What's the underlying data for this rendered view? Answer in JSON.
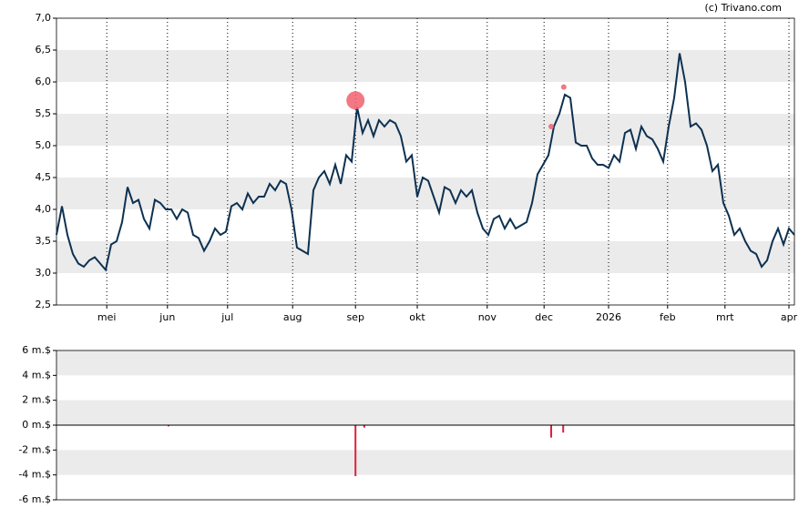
{
  "chart_data": [
    {
      "type": "line",
      "source": "(c) Trivano.com",
      "color": "#0d3151",
      "values": [
        3.6,
        4.05,
        3.6,
        3.3,
        3.15,
        3.1,
        3.2,
        3.25,
        3.15,
        3.05,
        3.45,
        3.5,
        3.8,
        4.35,
        4.1,
        4.15,
        3.85,
        3.7,
        4.15,
        4.1,
        4.0,
        4.0,
        3.85,
        4.0,
        3.95,
        3.6,
        3.55,
        3.35,
        3.5,
        3.7,
        3.6,
        3.65,
        4.05,
        4.1,
        4.0,
        4.25,
        4.1,
        4.2,
        4.2,
        4.4,
        4.3,
        4.45,
        4.4,
        4.0,
        3.4,
        3.35,
        3.3,
        4.3,
        4.5,
        4.6,
        4.4,
        4.7,
        4.4,
        4.85,
        4.75,
        5.6,
        5.2,
        5.4,
        5.15,
        5.4,
        5.3,
        5.4,
        5.35,
        5.15,
        4.75,
        4.85,
        4.2,
        4.5,
        4.45,
        4.2,
        3.95,
        4.35,
        4.3,
        4.1,
        4.3,
        4.2,
        4.3,
        3.95,
        3.7,
        3.6,
        3.85,
        3.9,
        3.7,
        3.85,
        3.7,
        3.75,
        3.8,
        4.1,
        4.55,
        4.7,
        4.85,
        5.3,
        5.5,
        5.8,
        5.75,
        5.05,
        5.0,
        5.0,
        4.8,
        4.7,
        4.7,
        4.65,
        4.85,
        4.75,
        5.2,
        5.25,
        4.95,
        5.3,
        5.15,
        5.1,
        4.95,
        4.75,
        5.3,
        5.75,
        6.45,
        6.0,
        5.3,
        5.35,
        5.25,
        5.0,
        4.6,
        4.7,
        4.1,
        3.9,
        3.6,
        3.7,
        3.5,
        3.35,
        3.3,
        3.1,
        3.2,
        3.5,
        3.7,
        3.45,
        3.7,
        3.6
      ],
      "events": {
        "color": "#f0606e",
        "x": [
          54.7,
          90.5,
          92.8
        ],
        "values": [
          5.71,
          5.3,
          5.92
        ],
        "sizes": [
          10,
          3,
          3
        ]
      },
      "xlim": [
        0,
        135
      ],
      "xticks": [
        {
          "value": 9.2,
          "label": "mei"
        },
        {
          "value": 20.3,
          "label": "jun"
        },
        {
          "value": 31.3,
          "label": "jul"
        },
        {
          "value": 43.2,
          "label": "aug"
        },
        {
          "value": 54.7,
          "label": "sep"
        },
        {
          "value": 66,
          "label": "okt"
        },
        {
          "value": 78.8,
          "label": "nov"
        },
        {
          "value": 89.2,
          "label": "dec"
        },
        {
          "value": 101,
          "label": "2026"
        },
        {
          "value": 111.8,
          "label": "feb"
        },
        {
          "value": 122.3,
          "label": "mrt"
        },
        {
          "value": 134,
          "label": "apr"
        }
      ],
      "ylim": [
        2.5,
        7
      ],
      "yticks": [
        {
          "value": 2.5,
          "label": "2,5"
        },
        {
          "value": 3,
          "label": "3,0"
        },
        {
          "value": 3.5,
          "label": "3,5"
        },
        {
          "value": 4,
          "label": "4,0"
        },
        {
          "value": 4.5,
          "label": "4,5"
        },
        {
          "value": 5,
          "label": "5,0"
        },
        {
          "value": 5.5,
          "label": "5,5"
        },
        {
          "value": 6,
          "label": "6,0"
        },
        {
          "value": 6.5,
          "label": "6,5"
        },
        {
          "value": 7,
          "label": "7,0"
        }
      ]
    },
    {
      "type": "bar",
      "color": "#e0203a",
      "x": [
        20.5,
        54.7,
        56.3,
        90.5,
        92.7
      ],
      "values": [
        -0.1,
        -4.1,
        -0.2,
        -1.0,
        -0.6
      ],
      "xlim": [
        0,
        135
      ],
      "ylim": [
        -6,
        6
      ],
      "yticks": [
        {
          "value": -6,
          "label": "-6 m.$"
        },
        {
          "value": -4,
          "label": "-4 m.$"
        },
        {
          "value": -2,
          "label": "-2 m.$"
        },
        {
          "value": 0,
          "label": "0 m.$"
        },
        {
          "value": 2,
          "label": "2 m.$"
        },
        {
          "value": 4,
          "label": "4 m.$"
        },
        {
          "value": 6,
          "label": "6 m.$"
        }
      ]
    }
  ]
}
